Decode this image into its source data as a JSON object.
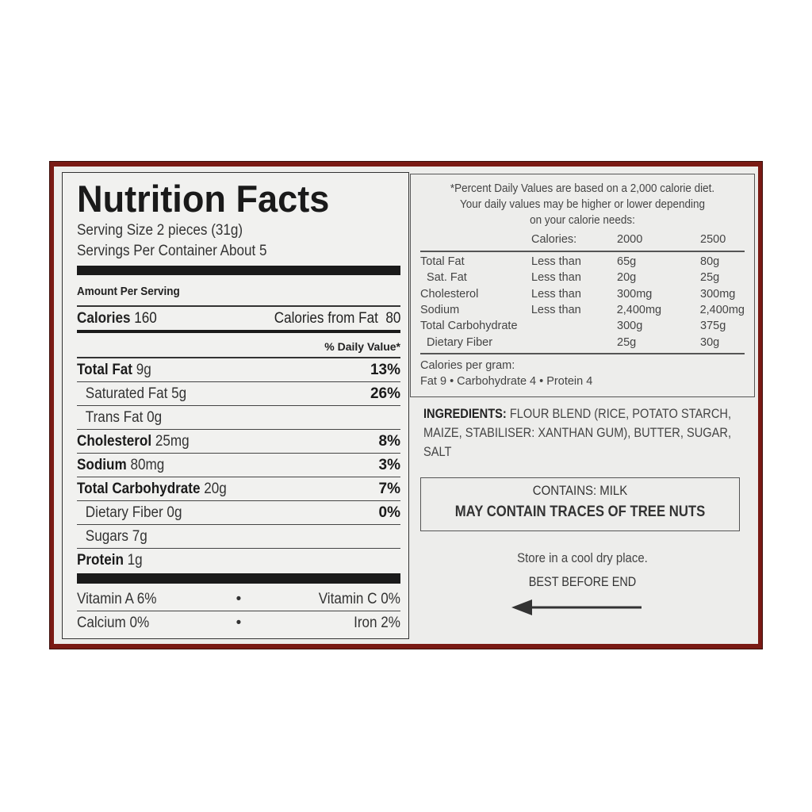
{
  "title": "Nutrition Facts",
  "serving_size": "Serving Size 2 pieces (31g)",
  "servings_per_container": "Servings Per Container About 5",
  "amount_per_serving": "Amount Per Serving",
  "calories": {
    "label": "Calories",
    "value": "160",
    "from_fat_label": "Calories from Fat",
    "from_fat_value": "80"
  },
  "daily_value_header": "% Daily Value*",
  "nutrients": [
    {
      "label": "Total Fat",
      "amount": "9g",
      "dv": "13%",
      "bold": true
    },
    {
      "label": "Saturated Fat",
      "amount": "5g",
      "dv": "26%",
      "bold": false
    },
    {
      "label": "Trans Fat",
      "amount": "0g",
      "dv": "",
      "bold": false
    },
    {
      "label": "Cholesterol",
      "amount": "25mg",
      "dv": "8%",
      "bold": true
    },
    {
      "label": "Sodium",
      "amount": "80mg",
      "dv": "3%",
      "bold": true
    },
    {
      "label": "Total Carbohydrate",
      "amount": "20g",
      "dv": "7%",
      "bold": true
    },
    {
      "label": "Dietary Fiber",
      "amount": "0g",
      "dv": "0%",
      "bold": false
    },
    {
      "label": "Sugars",
      "amount": "7g",
      "dv": "",
      "bold": false
    },
    {
      "label": "Protein",
      "amount": "1g",
      "dv": "",
      "bold": true
    }
  ],
  "vitamins": [
    {
      "left": "Vitamin A 6%",
      "right": "Vitamin C 0%"
    },
    {
      "left": "Calcium 0%",
      "right": "Iron 2%"
    }
  ],
  "footnote": {
    "line1": "*Percent Daily Values are based on a 2,000 calorie diet.",
    "line2": "Your daily values may be higher or lower depending",
    "line3": "on your calorie needs:",
    "header": [
      "",
      "Calories:",
      "2000",
      "2500"
    ],
    "rows": [
      [
        "Total Fat",
        "Less than",
        "65g",
        "80g"
      ],
      [
        "  Sat. Fat",
        "Less than",
        "20g",
        "25g"
      ],
      [
        "Cholesterol",
        "Less than",
        "300mg",
        "300mg"
      ],
      [
        "Sodium",
        "Less than",
        "2,400mg",
        "2,400mg"
      ],
      [
        "Total Carbohydrate",
        "",
        "300g",
        "375g"
      ],
      [
        "  Dietary Fiber",
        "",
        "25g",
        "30g"
      ]
    ],
    "per_gram_label": "Calories per gram:",
    "per_gram": "Fat 9 • Carbohydrate 4 • Protein 4"
  },
  "ingredients": {
    "label": "INGREDIENTS:",
    "text": "FLOUR BLEND (RICE, POTATO STARCH, MAIZE, STABILISER: XANTHAN GUM), BUTTER, SUGAR, SALT"
  },
  "allergens": {
    "contains": "CONTAINS: MILK",
    "may_contain": "MAY CONTAIN TRACES OF TREE NUTS"
  },
  "storage": "Store in a cool dry place.",
  "best_before": "BEST BEFORE END",
  "arrow_icon": "arrow-left-icon"
}
